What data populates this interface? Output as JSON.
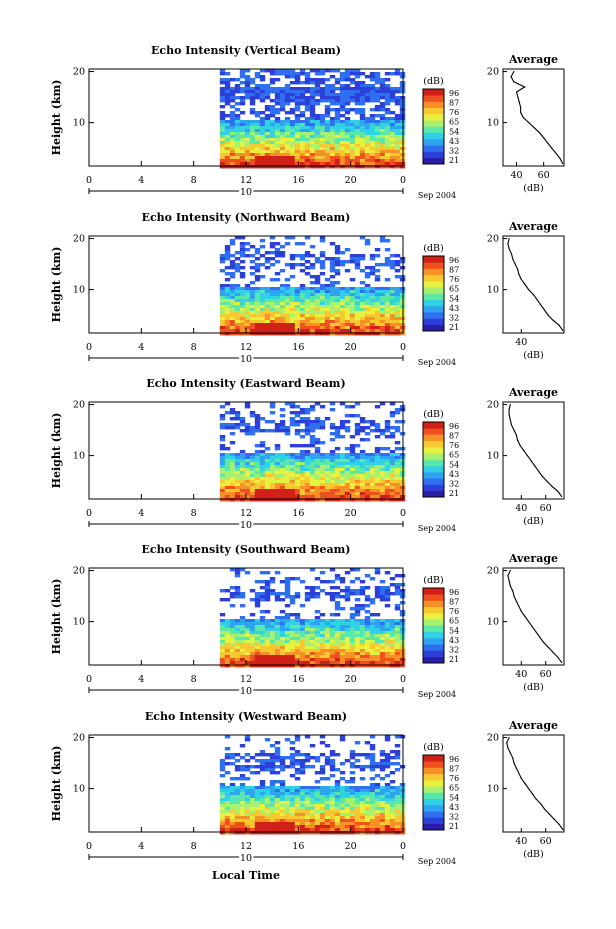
{
  "figure": {
    "xlabel": "Local Time",
    "date_label": "Sep 2004",
    "day_label": "10",
    "average_title": "Average",
    "colorbar_unit": "(dB)",
    "colorbar_ticks": [
      "96",
      "87",
      "76",
      "65",
      "54",
      "43",
      "32",
      "21"
    ],
    "colormap": [
      "#2a1ea8",
      "#2c3fd8",
      "#2e6ff0",
      "#2ea4f0",
      "#30d0e6",
      "#5ae8a8",
      "#a8f070",
      "#e8f040",
      "#f8c830",
      "#f89028",
      "#f05020",
      "#d02018"
    ]
  },
  "chart_data": [
    {
      "type": "heatmap",
      "title": "Echo Intensity (Vertical Beam)",
      "ylabel": "Height (km)",
      "x_ticks": [
        "0",
        "4",
        "8",
        "12",
        "16",
        "20",
        "0"
      ],
      "y_ticks": [
        "20",
        "10"
      ],
      "xlim": [
        0,
        24
      ],
      "ylim": [
        1.5,
        20.5
      ],
      "data_start_hour": 10,
      "colorbar_range": [
        21,
        96
      ],
      "profile": {
        "xlabel": "(dB)",
        "x_ticks": [
          "40",
          "60"
        ],
        "xlim": [
          30,
          75
        ],
        "y_ticks": [
          "20",
          "10"
        ],
        "height_km": [
          2,
          3,
          4,
          5,
          6,
          7,
          8,
          9,
          10,
          11,
          12,
          13,
          14,
          15,
          16,
          17,
          18,
          19,
          20
        ],
        "db": [
          74,
          72,
          69,
          66,
          63,
          60,
          57,
          53,
          49,
          45,
          43,
          43,
          42,
          41,
          40,
          46,
          38,
          36,
          38
        ]
      }
    },
    {
      "type": "heatmap",
      "title": "Echo Intensity (Northward Beam)",
      "ylabel": "Height (km)",
      "x_ticks": [
        "0",
        "4",
        "8",
        "12",
        "16",
        "20",
        "0"
      ],
      "y_ticks": [
        "20",
        "10"
      ],
      "xlim": [
        0,
        24
      ],
      "ylim": [
        1.5,
        20.5
      ],
      "data_start_hour": 10,
      "colorbar_range": [
        21,
        96
      ],
      "profile": {
        "xlabel": "(dB)",
        "x_ticks": [
          "40"
        ],
        "xlim": [
          25,
          75
        ],
        "y_ticks": [
          "20",
          "10"
        ],
        "height_km": [
          2,
          3,
          4,
          5,
          6,
          7,
          8,
          9,
          10,
          11,
          12,
          13,
          14,
          15,
          16,
          17,
          18,
          19,
          20
        ],
        "db": [
          74,
          71,
          66,
          62,
          59,
          56,
          53,
          50,
          46,
          43,
          40,
          38,
          37,
          35,
          33,
          32,
          30,
          29,
          30
        ]
      }
    },
    {
      "type": "heatmap",
      "title": "Echo Intensity (Eastward Beam)",
      "ylabel": "Height (km)",
      "x_ticks": [
        "0",
        "4",
        "8",
        "12",
        "16",
        "20",
        "0"
      ],
      "y_ticks": [
        "20",
        "10"
      ],
      "xlim": [
        0,
        24
      ],
      "ylim": [
        1.5,
        20.5
      ],
      "data_start_hour": 10,
      "colorbar_range": [
        21,
        96
      ],
      "profile": {
        "xlabel": "(dB)",
        "x_ticks": [
          "40",
          "60"
        ],
        "xlim": [
          25,
          75
        ],
        "y_ticks": [
          "20",
          "10"
        ],
        "height_km": [
          2,
          3,
          4,
          5,
          6,
          7,
          8,
          9,
          10,
          11,
          12,
          13,
          14,
          15,
          16,
          17,
          18,
          19,
          20
        ],
        "db": [
          73,
          70,
          65,
          61,
          57,
          54,
          51,
          48,
          45,
          42,
          39,
          37,
          36,
          34,
          32,
          31,
          30,
          30,
          31
        ]
      }
    },
    {
      "type": "heatmap",
      "title": "Echo Intensity (Southward Beam)",
      "ylabel": "Height (km)",
      "x_ticks": [
        "0",
        "4",
        "8",
        "12",
        "16",
        "20",
        "0"
      ],
      "y_ticks": [
        "20",
        "10"
      ],
      "xlim": [
        0,
        24
      ],
      "ylim": [
        1.5,
        20.5
      ],
      "data_start_hour": 10,
      "colorbar_range": [
        21,
        96
      ],
      "profile": {
        "xlabel": "(dB)",
        "x_ticks": [
          "40",
          "60"
        ],
        "xlim": [
          25,
          75
        ],
        "y_ticks": [
          "20",
          "10"
        ],
        "height_km": [
          2,
          3,
          4,
          5,
          6,
          7,
          8,
          9,
          10,
          11,
          12,
          13,
          14,
          15,
          16,
          17,
          18,
          19,
          20
        ],
        "db": [
          73,
          70,
          66,
          62,
          58,
          55,
          52,
          49,
          46,
          43,
          40,
          38,
          36,
          34,
          33,
          31,
          30,
          29,
          31
        ]
      }
    },
    {
      "type": "heatmap",
      "title": "Echo Intensity (Westward Beam)",
      "ylabel": "Height (km)",
      "x_ticks": [
        "0",
        "4",
        "8",
        "12",
        "16",
        "20",
        "0"
      ],
      "y_ticks": [
        "20",
        "10"
      ],
      "xlim": [
        0,
        24
      ],
      "ylim": [
        1.5,
        20.5
      ],
      "data_start_hour": 10,
      "colorbar_range": [
        21,
        96
      ],
      "profile": {
        "xlabel": "(dB)",
        "x_ticks": [
          "40",
          "60"
        ],
        "xlim": [
          25,
          75
        ],
        "y_ticks": [
          "20",
          "10"
        ],
        "height_km": [
          2,
          3,
          4,
          5,
          6,
          7,
          8,
          9,
          10,
          11,
          12,
          13,
          14,
          15,
          16,
          17,
          18,
          19,
          20
        ],
        "db": [
          74,
          71,
          67,
          63,
          59,
          56,
          52,
          49,
          46,
          43,
          40,
          38,
          36,
          34,
          33,
          31,
          29,
          28,
          30
        ]
      }
    }
  ]
}
